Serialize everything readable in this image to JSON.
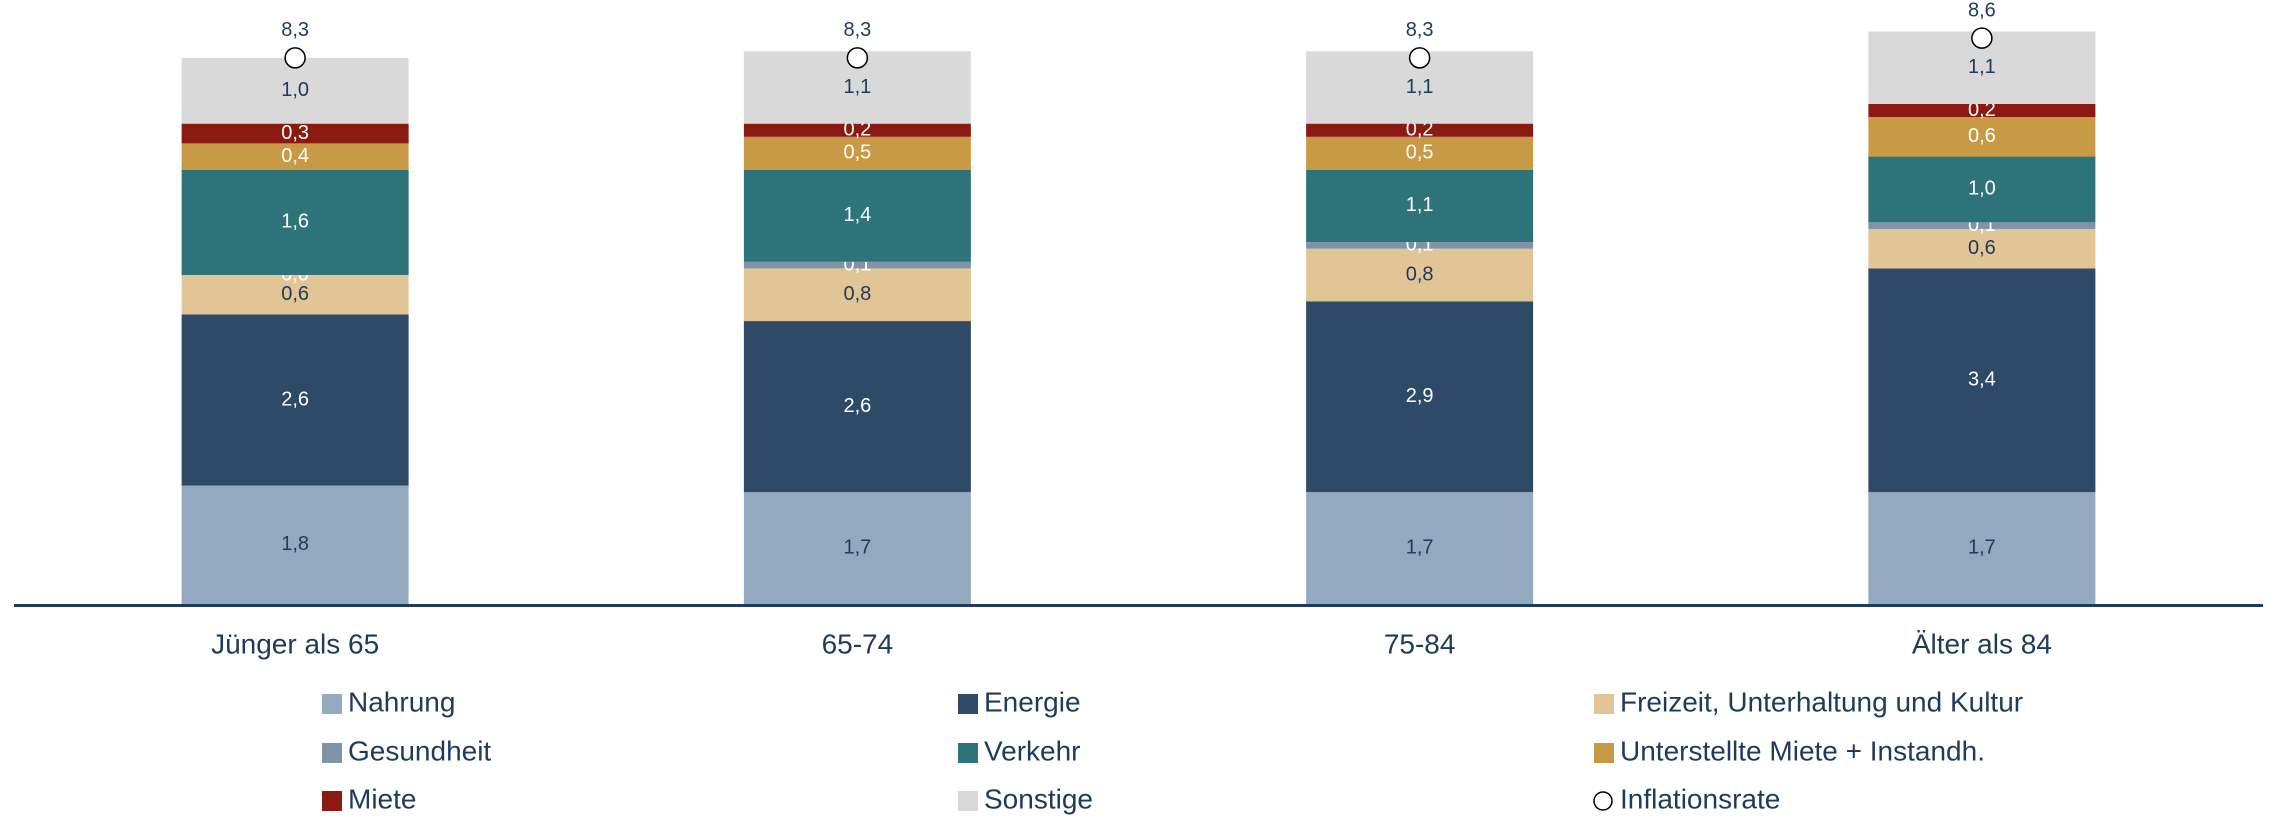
{
  "chart_data": {
    "type": "stacked_bar",
    "categories": [
      "Jünger als 65",
      "65-74",
      "75-84",
      "Älter als 84"
    ],
    "series": [
      {
        "name": "Nahrung",
        "color": "#93a9bf",
        "values": [
          1.8,
          1.7,
          1.7,
          1.7
        ],
        "value_labels": [
          "1,8",
          "1,7",
          "1,7",
          "1,7"
        ]
      },
      {
        "name": "Energie",
        "color": "#2e4a66",
        "values": [
          2.6,
          2.6,
          2.9,
          3.4
        ],
        "value_labels": [
          "2,6",
          "2,6",
          "2,9",
          "3,4"
        ]
      },
      {
        "name": "Freizeit, Unterhaltung und Kultur",
        "color": "#e2c596",
        "values": [
          0.6,
          0.8,
          0.8,
          0.6
        ],
        "value_labels": [
          "0,6",
          "0,8",
          "0,8",
          "0,6"
        ]
      },
      {
        "name": "Gesundheit",
        "color": "#7f93a6",
        "values": [
          0.0,
          0.1,
          0.1,
          0.1
        ],
        "value_labels": [
          "0,0",
          "0,1",
          "0,1",
          "0,1"
        ]
      },
      {
        "name": "Verkehr",
        "color": "#2f737a",
        "values": [
          1.6,
          1.4,
          1.1,
          1.0
        ],
        "value_labels": [
          "1,6",
          "1,4",
          "1,1",
          "1,0"
        ]
      },
      {
        "name": "Unterstellte Miete + Instandh.",
        "color": "#c99a45",
        "values": [
          0.4,
          0.5,
          0.5,
          0.6
        ],
        "value_labels": [
          "0,4",
          "0,5",
          "0,5",
          "0,6"
        ]
      },
      {
        "name": "Miete",
        "color": "#8b1a12",
        "values": [
          0.3,
          0.2,
          0.2,
          0.2
        ],
        "value_labels": [
          "0,3",
          "0,2",
          "0,2",
          "0,2"
        ]
      },
      {
        "name": "Sonstige",
        "color": "#d9d9d9",
        "values": [
          1.0,
          1.1,
          1.1,
          1.1
        ],
        "value_labels": [
          "1,0",
          "1,1",
          "1,1",
          "1,1"
        ]
      },
      {
        "name": "Inflationsrate",
        "color": "#000000",
        "marker": "circle",
        "values": [
          8.3,
          8.3,
          8.3,
          8.6
        ],
        "value_labels": [
          "8,3",
          "8,3",
          "8,3",
          "8,6"
        ]
      }
    ]
  }
}
